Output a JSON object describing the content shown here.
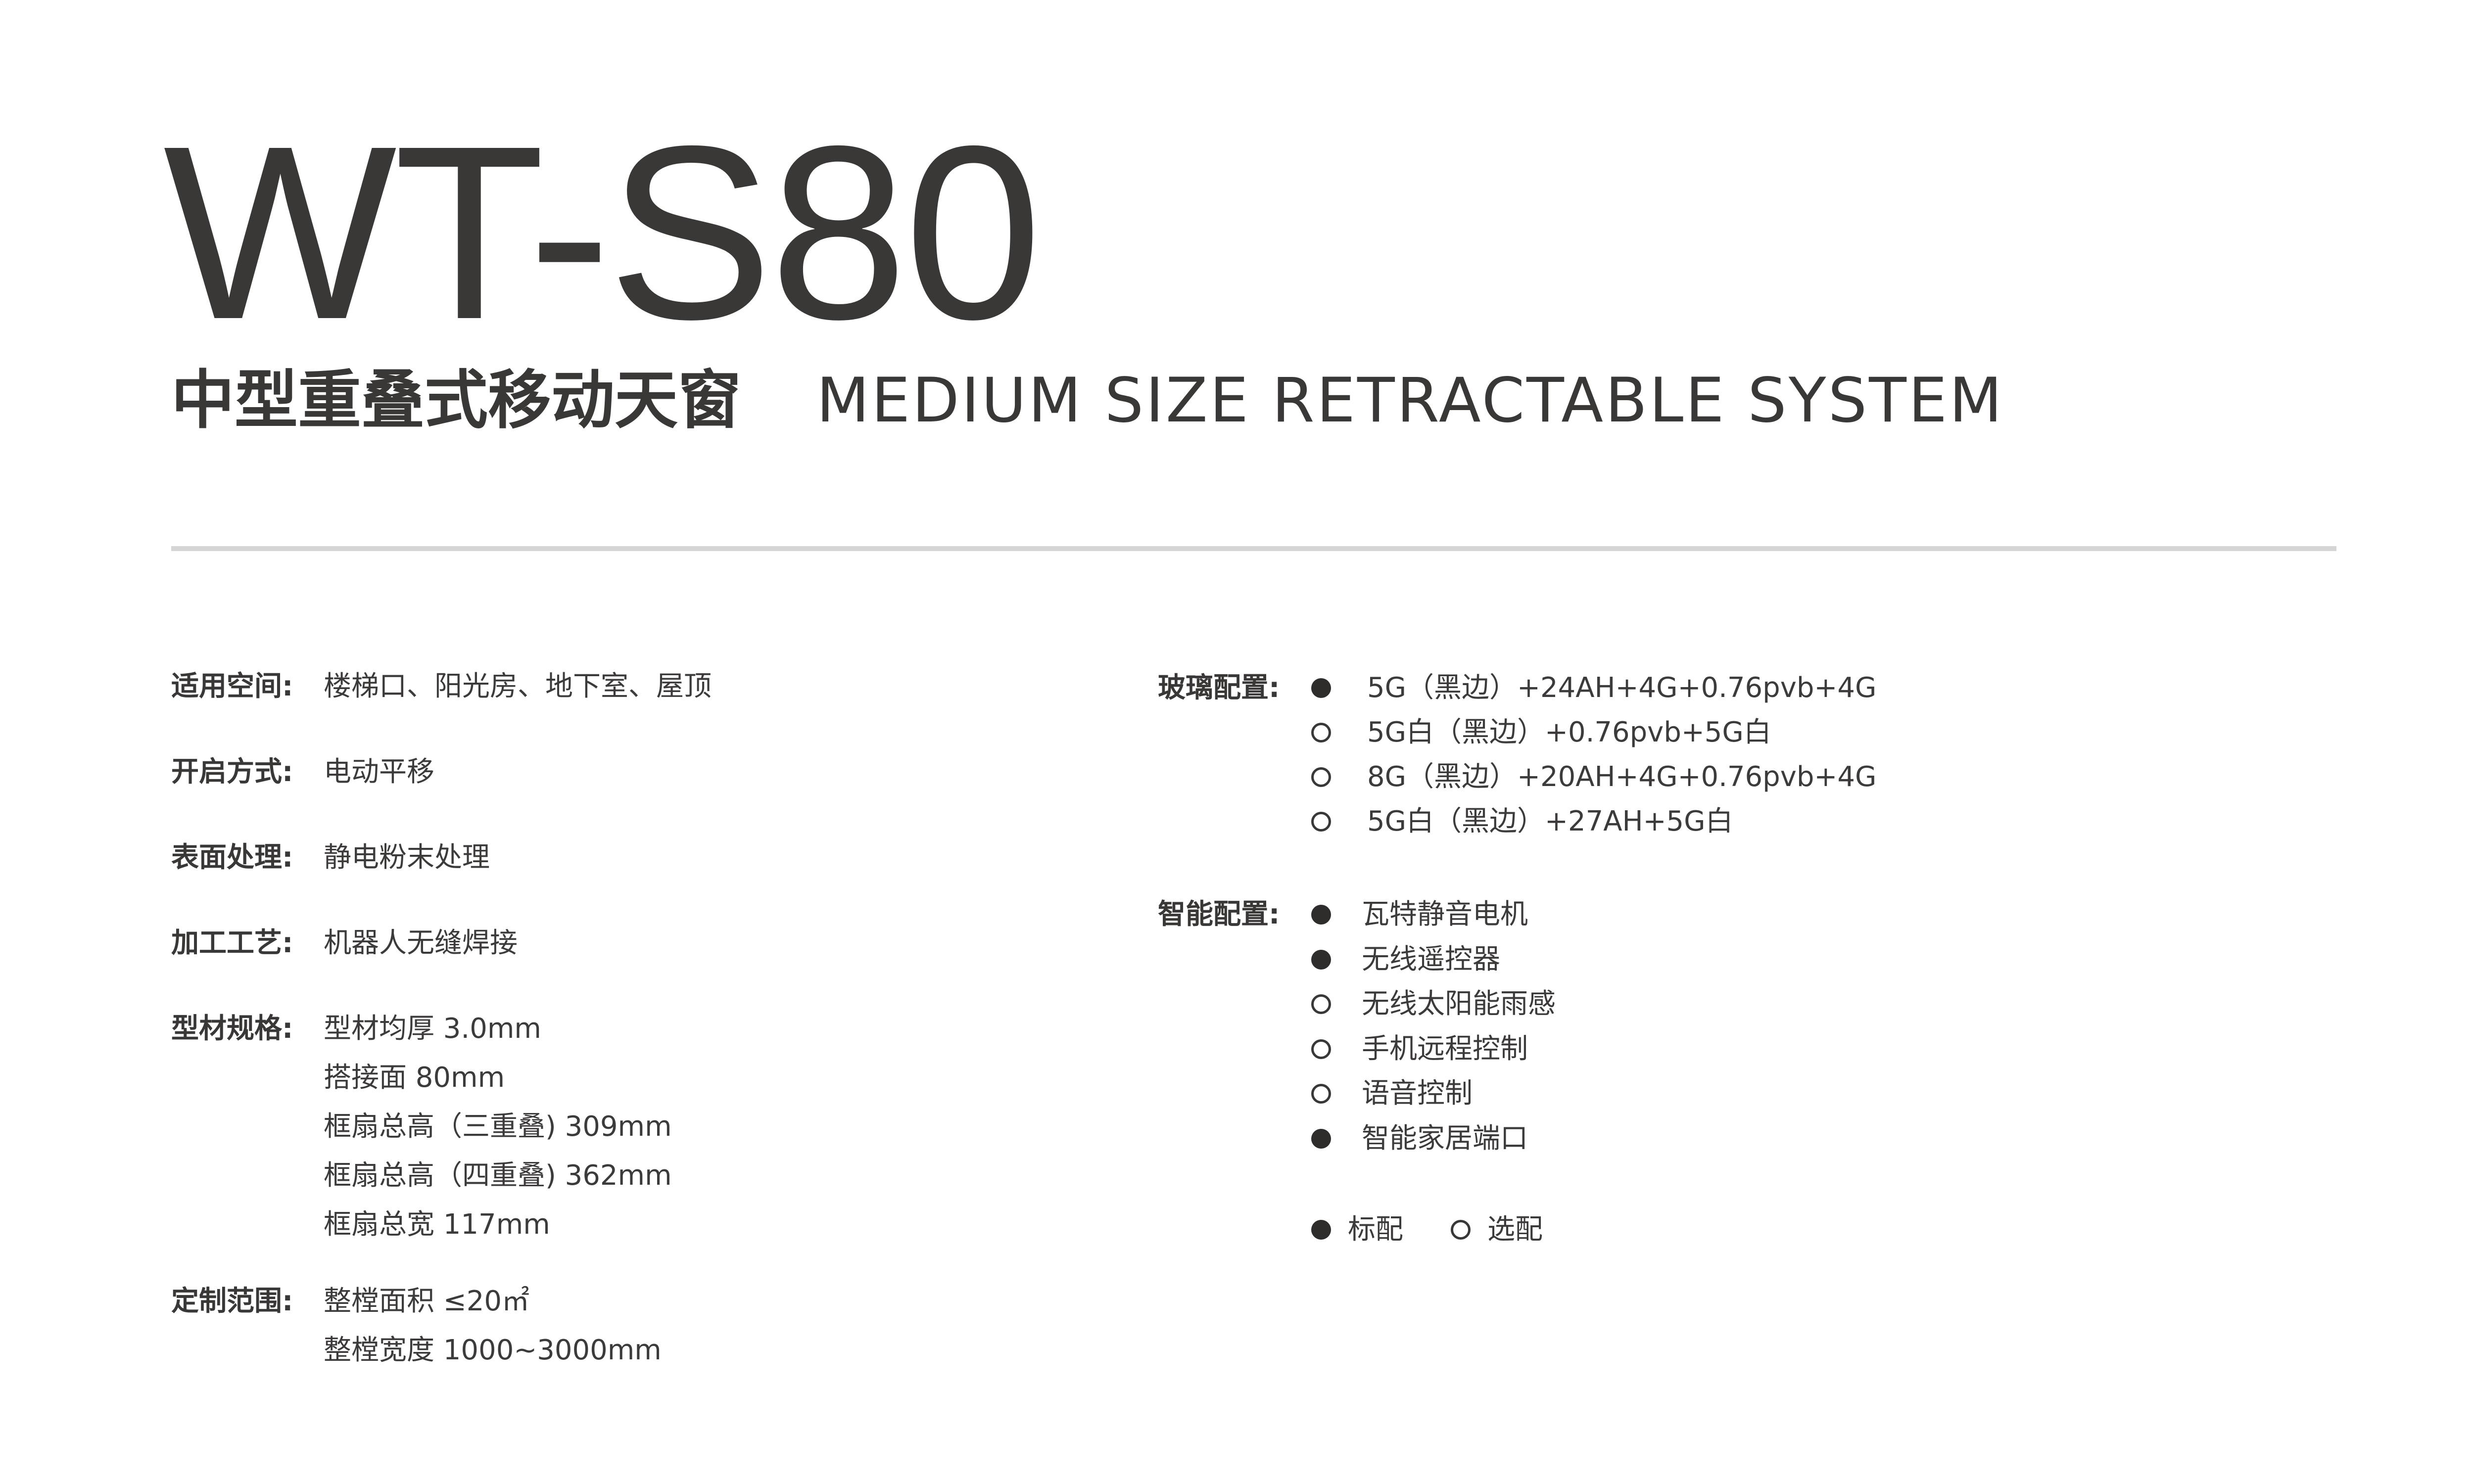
{
  "header": {
    "model": "WT-S80",
    "subtitle_cn": "中型重叠式移动天窗",
    "subtitle_en": "MEDIUM SIZE RETRACTABLE SYSTEM"
  },
  "specs": [
    {
      "label": "适用空间:",
      "values": [
        "楼梯口、阳光房、地下室、屋顶"
      ]
    },
    {
      "label": "开启方式:",
      "values": [
        "电动平移"
      ]
    },
    {
      "label": "表面处理:",
      "values": [
        "静电粉末处理"
      ]
    },
    {
      "label": "加工工艺:",
      "values": [
        "机器人无缝焊接"
      ]
    },
    {
      "label": "型材规格:",
      "values": [
        "型材均厚 3.0mm",
        "搭接面 80mm",
        "框扇总高（三重叠) 309mm",
        "框扇总高（四重叠) 362mm",
        "框扇总宽 117mm"
      ]
    },
    {
      "label": "定制范围:",
      "values": [
        "整樘面积 ≤20㎡",
        "整樘宽度 1000~3000mm"
      ]
    }
  ],
  "glass": {
    "label": "玻璃配置:",
    "items": [
      {
        "text": "5G（黑边）+24AH+4G+0.76pvb+4G",
        "type": "standard"
      },
      {
        "text": "5G白（黑边）+0.76pvb+5G白",
        "type": "optional"
      },
      {
        "text": "8G（黑边）+20AH+4G+0.76pvb+4G",
        "type": "optional"
      },
      {
        "text": "5G白（黑边）+27AH+5G白",
        "type": "optional"
      }
    ]
  },
  "smart": {
    "label": "智能配置:",
    "items": [
      {
        "text": "瓦特静音电机",
        "type": "standard"
      },
      {
        "text": "无线遥控器",
        "type": "standard"
      },
      {
        "text": "无线太阳能雨感",
        "type": "optional"
      },
      {
        "text": "手机远程控制",
        "type": "optional"
      },
      {
        "text": "语音控制",
        "type": "optional"
      },
      {
        "text": "智能家居端口",
        "type": "standard"
      }
    ]
  },
  "legend": {
    "standard": "标配",
    "optional": "选配"
  },
  "colors": {
    "text": "#3a3737",
    "divider": "#d5d5d5"
  }
}
